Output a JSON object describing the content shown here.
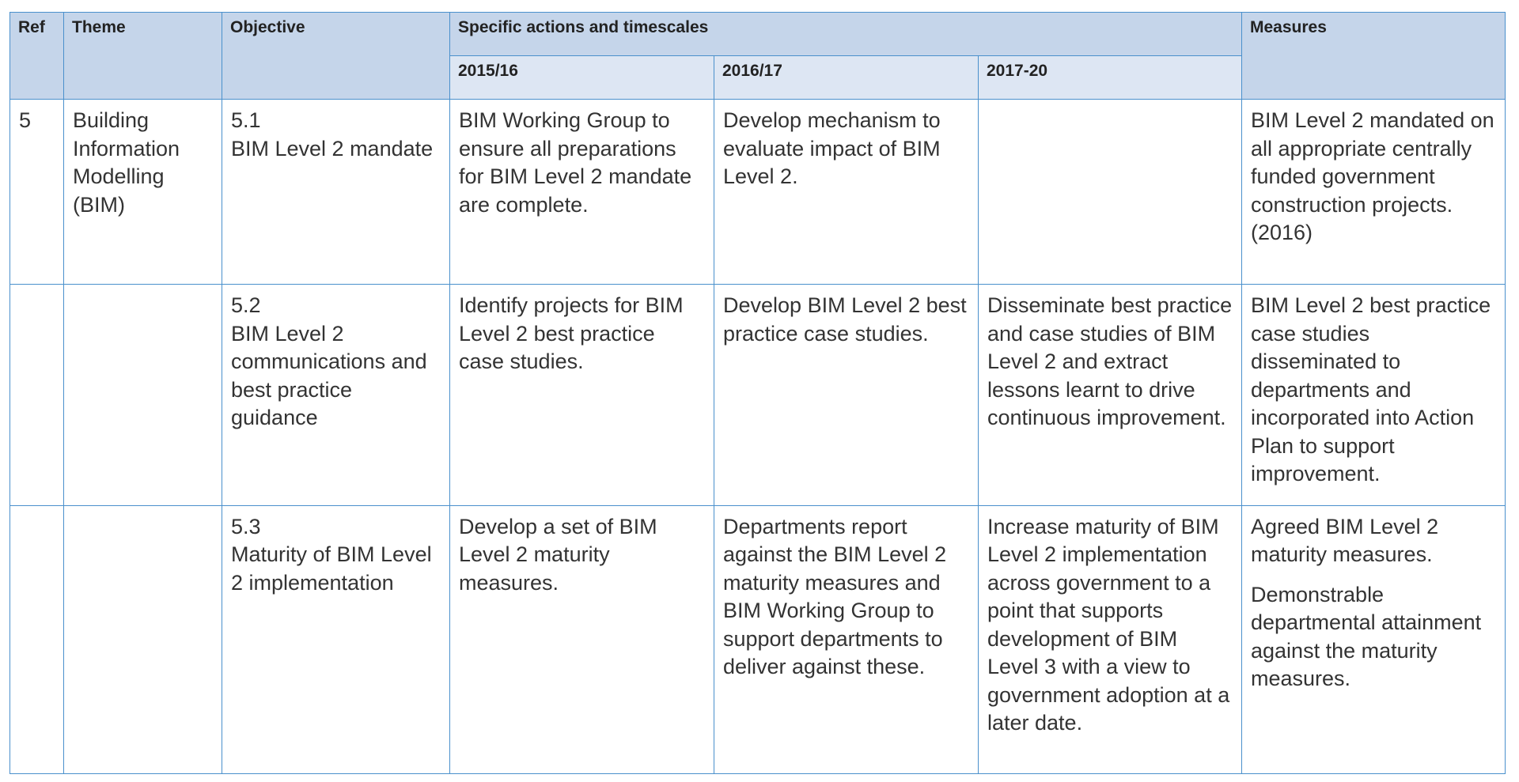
{
  "header": {
    "ref": "Ref",
    "theme": "Theme",
    "objective": "Objective",
    "actions": "Specific actions and timescales",
    "years": [
      "2015/16",
      "2016/17",
      "2017-20"
    ],
    "measures": "Measures"
  },
  "rows": [
    {
      "ref": "5",
      "theme": "Building Information Modelling (BIM)",
      "objective_ref": "5.1",
      "objective": "BIM Level 2 mandate",
      "actions": [
        "BIM Working Group to ensure all preparations for BIM Level 2 mandate are complete.",
        "Develop mechanism to evaluate impact of BIM Level 2."
      ],
      "measures": [
        "BIM Level 2 mandated on all appropriate centrally funded government construction projects. (2016)"
      ]
    },
    {
      "objective_ref": "5.2",
      "objective": "BIM Level 2 communications and best practice guidance",
      "actions": [
        "Identify projects for BIM Level 2 best practice case studies.",
        "Develop BIM Level 2 best practice case studies.",
        "Disseminate best practice and case studies of BIM Level 2 and extract lessons learnt to drive continuous improvement."
      ],
      "measures": [
        "BIM Level 2 best practice case studies disseminated to departments and incorporated into Action Plan to support improvement."
      ]
    },
    {
      "objective_ref": "5.3",
      "objective": "Maturity of BIM Level 2 implementation",
      "actions": [
        "Develop a set of BIM Level 2 maturity measures.",
        "Departments report against the BIM Level 2 maturity measures and BIM Working Group to support departments to deliver against these.",
        "Increase maturity of BIM Level 2 implementation across government to a point that supports development of BIM Level 3 with a view to government adoption at a later date."
      ],
      "measures": [
        "Agreed BIM Level 2 maturity measures.",
        "Demonstrable departmental attainment against the maturity measures."
      ]
    }
  ]
}
